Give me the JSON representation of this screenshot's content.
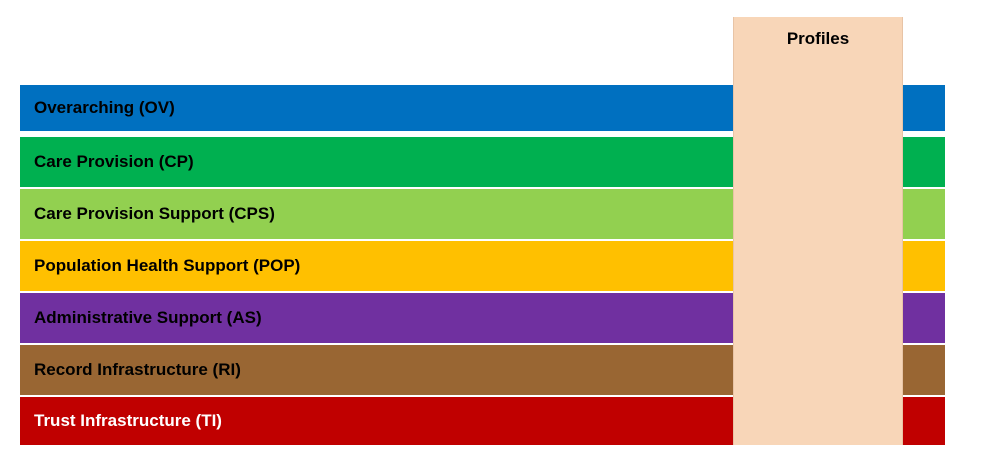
{
  "profiles": {
    "title": "Profiles"
  },
  "bands": [
    {
      "label": "Overarching (OV)",
      "color": "#0070c0",
      "text_color": "#000000"
    },
    {
      "label": "Care Provision (CP)",
      "color": "#00b050",
      "text_color": "#000000"
    },
    {
      "label": "Care Provision Support (CPS)",
      "color": "#92d050",
      "text_color": "#000000"
    },
    {
      "label": "Population Health Support (POP)",
      "color": "#ffc000",
      "text_color": "#000000"
    },
    {
      "label": "Administrative Support (AS)",
      "color": "#7030a0",
      "text_color": "#000000"
    },
    {
      "label": "Record Infrastructure (RI)",
      "color": "#996633",
      "text_color": "#000000"
    },
    {
      "label": "Trust Infrastructure (TI)",
      "color": "#c00000",
      "text_color": "#ffffff"
    }
  ]
}
